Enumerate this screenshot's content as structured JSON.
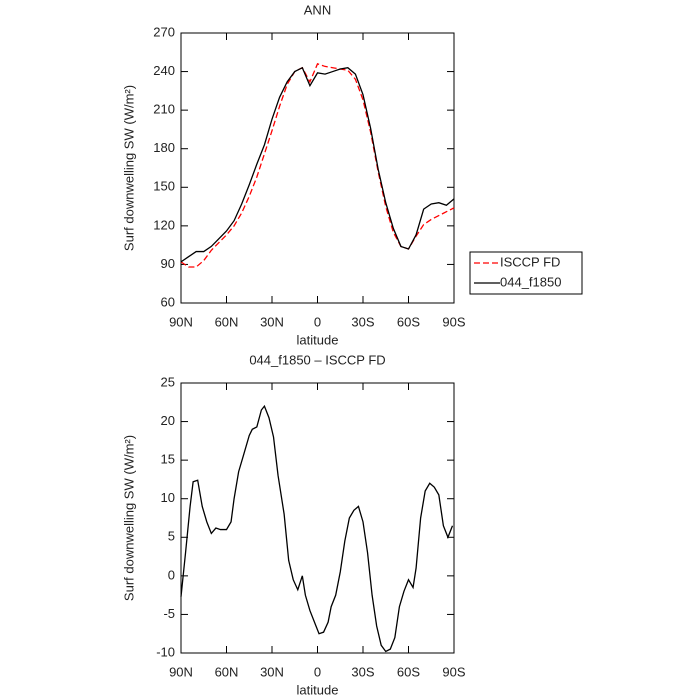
{
  "chart_data": [
    {
      "type": "line",
      "title": "ANN",
      "x_label": "latitude",
      "y_label": "Surf downwelling SW (W/m²)",
      "x": [
        90,
        85,
        80,
        75,
        70,
        65,
        60,
        55,
        50,
        45,
        40,
        35,
        30,
        25,
        20,
        15,
        10,
        5,
        0,
        -5,
        -10,
        -15,
        -20,
        -25,
        -30,
        -35,
        -40,
        -45,
        -50,
        -55,
        -60,
        -65,
        -70,
        -75,
        -80,
        -85,
        -90
      ],
      "series": [
        {
          "name": "ISCCP FD",
          "color": "#ff0000",
          "line_style": "dashed",
          "values": [
            92,
            88,
            88,
            93,
            101,
            107,
            113,
            120,
            130,
            143,
            158,
            176,
            194,
            213,
            230,
            240,
            243,
            232,
            246,
            244,
            243,
            242,
            241,
            234,
            218,
            193,
            162,
            135,
            115,
            104,
            102,
            112,
            121,
            125,
            128,
            131,
            134
          ]
        },
        {
          "name": "044_f1850",
          "color": "#000000",
          "line_style": "solid",
          "values": [
            92,
            96,
            100,
            100,
            104,
            110,
            116,
            124,
            137,
            152,
            168,
            183,
            203,
            220,
            232,
            240,
            243,
            229,
            239,
            238,
            240,
            242,
            243,
            238,
            222,
            196,
            164,
            138,
            118,
            104,
            102,
            113,
            133,
            137,
            138,
            136,
            141
          ]
        }
      ],
      "xlim": [
        90,
        -90
      ],
      "xticks": [
        {
          "value": 90,
          "label": "90N"
        },
        {
          "value": 60,
          "label": "60N"
        },
        {
          "value": 30,
          "label": "30N"
        },
        0,
        {
          "value": -30,
          "label": "30S"
        },
        {
          "value": -60,
          "label": "60S"
        },
        {
          "value": -90,
          "label": "90S"
        }
      ],
      "ylim": [
        60,
        270
      ],
      "yticks": [
        60,
        90,
        120,
        150,
        180,
        210,
        240,
        270
      ],
      "legend": "right"
    },
    {
      "type": "line",
      "title": "044_f1850 – ISCCP FD",
      "x_label": "latitude",
      "y_label": "Surf downwelling SW (W/m²)",
      "x": [
        90,
        87,
        84,
        82,
        79,
        76,
        73,
        70,
        67,
        64,
        60,
        57,
        55,
        52,
        49,
        45,
        43,
        40,
        37,
        35,
        32,
        29,
        26,
        22,
        19,
        16,
        13,
        10,
        8,
        5,
        1,
        -1,
        -4,
        -7,
        -9,
        -12,
        -15,
        -18,
        -21,
        -24,
        -27,
        -30,
        -33,
        -36,
        -39,
        -42,
        -45,
        -48,
        -51,
        -54,
        -57,
        -60,
        -63,
        -65,
        -68,
        -71,
        -74,
        -77,
        -80,
        -83,
        -86,
        -89
      ],
      "values": [
        -2.7,
        3,
        9,
        12.2,
        12.4,
        9,
        7,
        5.5,
        6.2,
        6,
        6,
        7,
        10,
        13.5,
        15.5,
        18.2,
        19,
        19.3,
        21.5,
        22,
        20.5,
        18,
        13,
        8,
        2,
        -0.5,
        -1.8,
        0,
        -2.5,
        -4.5,
        -6.5,
        -7.5,
        -7.3,
        -6,
        -4,
        -2.5,
        0.5,
        4.5,
        7.5,
        8.5,
        9,
        7,
        3,
        -2.5,
        -6.5,
        -9,
        -9.8,
        -9.5,
        -8,
        -4,
        -2,
        -0.5,
        -1.5,
        1,
        7.5,
        11,
        12,
        11.5,
        10.5,
        6.5,
        5,
        6.5
      ],
      "color": "#000000",
      "xlim": [
        90,
        -90
      ],
      "xticks": [
        {
          "value": 90,
          "label": "90N"
        },
        {
          "value": 60,
          "label": "60N"
        },
        {
          "value": 30,
          "label": "30N"
        },
        0,
        {
          "value": -30,
          "label": "30S"
        },
        {
          "value": -60,
          "label": "60S"
        },
        {
          "value": -90,
          "label": "90S"
        }
      ],
      "ylim": [
        -10,
        25
      ],
      "yticks": [
        -10,
        -5,
        0,
        5,
        10,
        15,
        20,
        25
      ]
    }
  ]
}
